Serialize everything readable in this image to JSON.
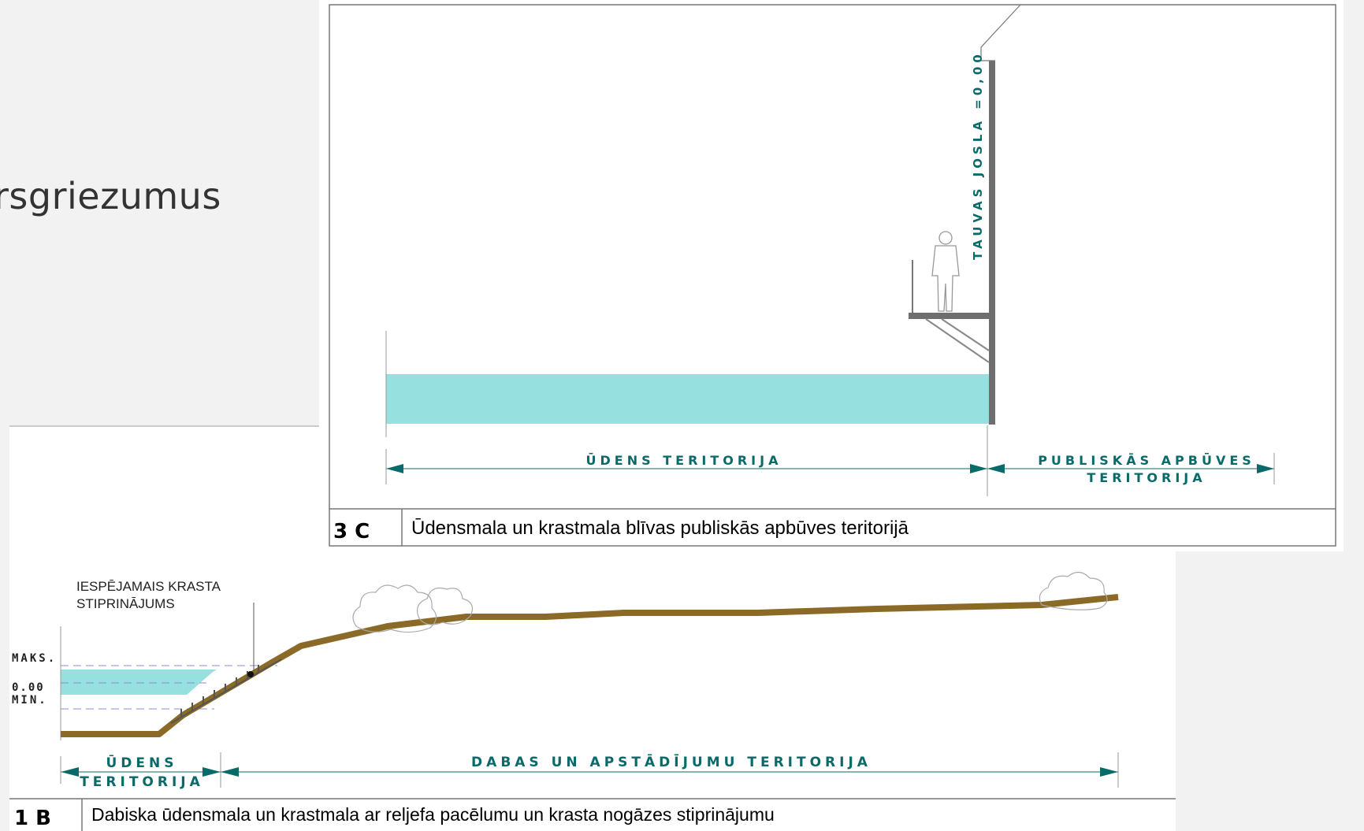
{
  "slide": {
    "title_fragment": "rsgriezumus"
  },
  "section_3c": {
    "number": "3 C",
    "caption": "Ūdensmala un krastmala blīvas publiskās apbūves teritorijā",
    "vertical_label": "TAUVAS JOSLA =0,00",
    "dim_water": "ŪDENS TERITORIJA",
    "dim_public_line1": "PUBLISKĀS APBŪVES",
    "dim_public_line2": "TERITORIJA"
  },
  "section_1b": {
    "number": "1 B",
    "caption": "Dabiska ūdensmala un krastmala ar reljefa pacēlumu un krasta nogāzes stiprinājumu",
    "annotation_line1": "IESPĒJAMAIS KRASTA",
    "annotation_line2": "STIPRINĀJUMS",
    "level_max": "MAKS.",
    "level_zero": "0.00",
    "level_min": "MIN.",
    "dim_water_line1": "ŪDENS",
    "dim_water_line2": "TERITORIJA",
    "dim_nature": "DABAS UN APSTĀDĪJUMU TERITORIJA"
  },
  "colors": {
    "water": "#96e0e0",
    "ground": "#8a6a26",
    "dimension": "#0a6a6a",
    "wall": "#6e6e6e"
  }
}
